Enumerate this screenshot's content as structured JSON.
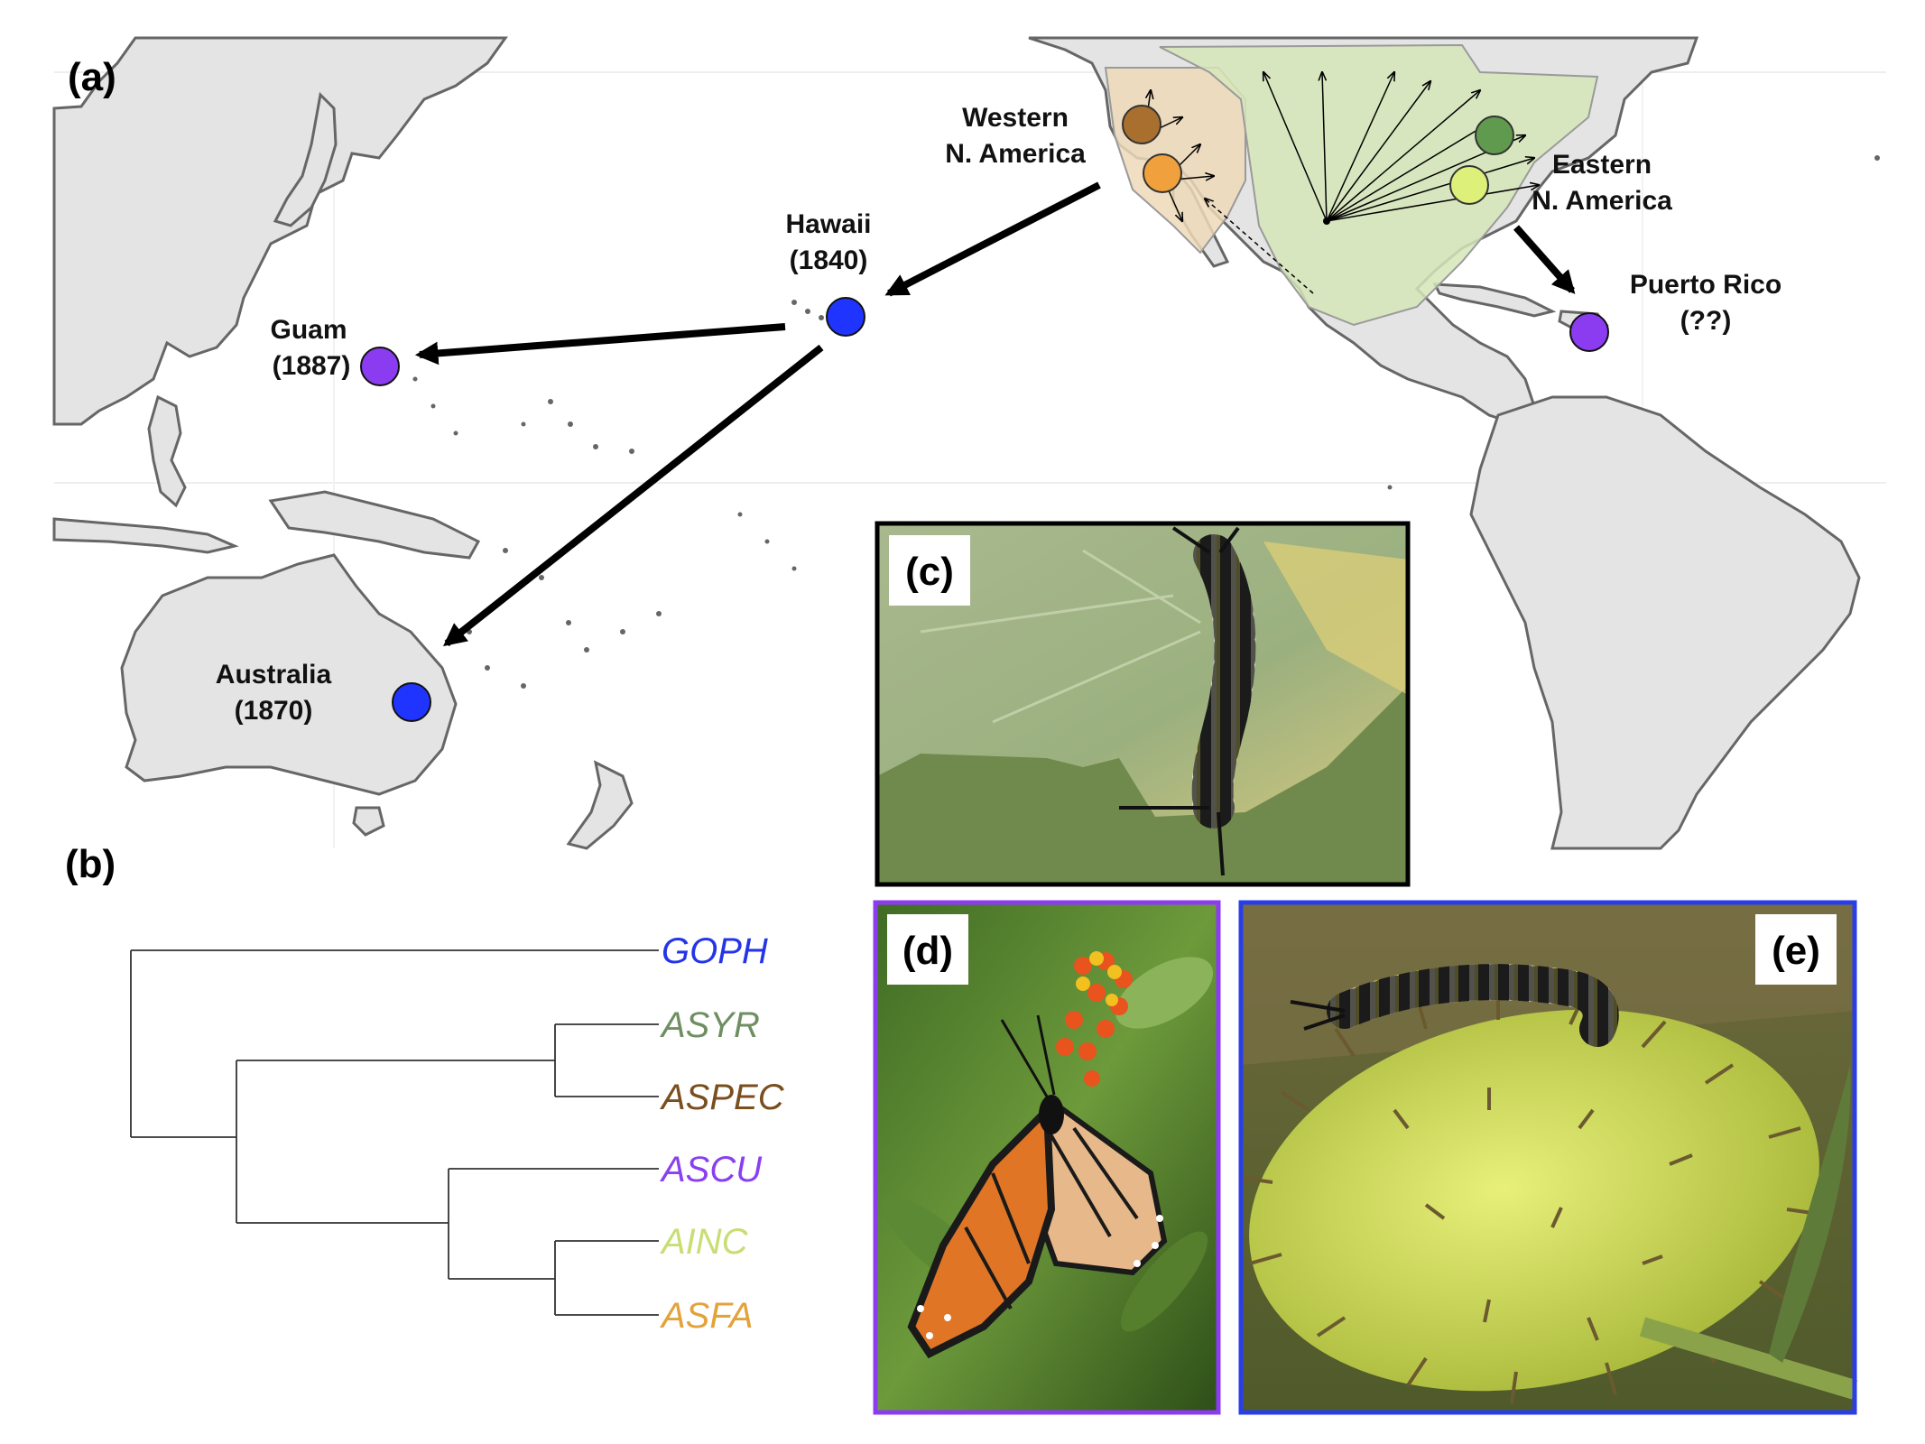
{
  "panels": {
    "a": "(a)",
    "b": "(b)",
    "c": "(c)",
    "d": "(d)",
    "e": "(e)"
  },
  "map": {
    "locations": {
      "western_line1": "Western",
      "western_line2": "N. America",
      "eastern_line1": "Eastern",
      "eastern_line2": "N. America",
      "hawaii_line1": "Hawaii",
      "hawaii_line2": "(1840)",
      "guam_line1": "Guam",
      "guam_line2": "(1887)",
      "australia_line1": "Australia",
      "australia_line2": "(1870)",
      "puerto_rico_line1": "Puerto Rico",
      "puerto_rico_line2": "(??)"
    },
    "colors": {
      "land": "#e4e4e4",
      "coast": "#666666",
      "blue_dot": "#1f35ff",
      "purple_dot": "#8b3cf0",
      "brown_dot": "#a86f2e",
      "orange_dot": "#f0a03c",
      "green_dot": "#5f9a4e",
      "lightgreen_dot": "#ddf07a",
      "west_range": "#efd9b8",
      "east_range": "#d6e6b8"
    }
  },
  "tree": {
    "tips": [
      {
        "label": "GOPH",
        "color": "#2435e8"
      },
      {
        "label": "ASYR",
        "color": "#6f8f62"
      },
      {
        "label": "ASPEC",
        "color": "#7a4e1e"
      },
      {
        "label": "ASCU",
        "color": "#8a3ff0"
      },
      {
        "label": "AINC",
        "color": "#c8de74"
      },
      {
        "label": "ASFA",
        "color": "#e3a23a"
      }
    ]
  },
  "photos": {
    "c_border": "#000000",
    "d_border": "#8b3cf0",
    "e_border": "#2a3ee8"
  }
}
